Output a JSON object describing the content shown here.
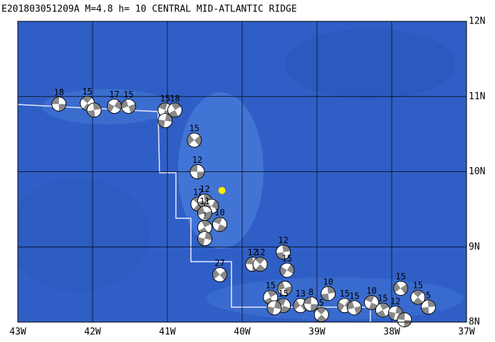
{
  "map": {
    "title": "E201803051209A  M=4.8  h= 10  CENTRAL MID-ATLANTIC RIDGE",
    "lonlim": [
      -43,
      -37
    ],
    "latlim": [
      8,
      12
    ],
    "lon_ticks": [
      {
        "value": -43,
        "label": "43W"
      },
      {
        "value": -42,
        "label": "42W"
      },
      {
        "value": -41,
        "label": "41W"
      },
      {
        "value": -40,
        "label": "40W"
      },
      {
        "value": -39,
        "label": "39W"
      },
      {
        "value": -38,
        "label": "38W"
      },
      {
        "value": -37,
        "label": "37W"
      }
    ],
    "lat_ticks": [
      {
        "value": 8,
        "label": "8N"
      },
      {
        "value": 9,
        "label": "9N"
      },
      {
        "value": 10,
        "label": "10N"
      },
      {
        "value": 11,
        "label": "11N"
      },
      {
        "value": 12,
        "label": "12N"
      }
    ],
    "epicenter": {
      "lon": -40.27,
      "lat": 9.75,
      "color": "#ffee00"
    },
    "events": [
      {
        "lon": -42.45,
        "lat": 10.9,
        "depth": 18
      },
      {
        "lon": -42.07,
        "lat": 10.91,
        "depth": 15
      },
      {
        "lon": -41.98,
        "lat": 10.82,
        "depth": null
      },
      {
        "lon": -41.71,
        "lat": 10.87,
        "depth": 17
      },
      {
        "lon": -41.52,
        "lat": 10.87,
        "depth": 15
      },
      {
        "lon": -41.03,
        "lat": 10.82,
        "depth": 15
      },
      {
        "lon": -40.9,
        "lat": 10.82,
        "depth": 18
      },
      {
        "lon": -41.03,
        "lat": 10.68,
        "depth": null
      },
      {
        "lon": -40.64,
        "lat": 10.42,
        "depth": 15
      },
      {
        "lon": -40.6,
        "lat": 10.0,
        "depth": 12
      },
      {
        "lon": -40.59,
        "lat": 9.57,
        "depth": 12
      },
      {
        "lon": -40.5,
        "lat": 9.61,
        "depth": 12
      },
      {
        "lon": -40.41,
        "lat": 9.54,
        "depth": null
      },
      {
        "lon": -40.5,
        "lat": 9.45,
        "depth": 11
      },
      {
        "lon": -40.3,
        "lat": 9.3,
        "depth": 10
      },
      {
        "lon": -40.5,
        "lat": 9.26,
        "depth": 1
      },
      {
        "lon": -40.5,
        "lat": 9.11,
        "depth": null
      },
      {
        "lon": -40.3,
        "lat": 8.63,
        "depth": 27
      },
      {
        "lon": -39.86,
        "lat": 8.77,
        "depth": 12
      },
      {
        "lon": -39.76,
        "lat": 8.77,
        "depth": 12
      },
      {
        "lon": -39.45,
        "lat": 8.93,
        "depth": 12
      },
      {
        "lon": -39.4,
        "lat": 8.69,
        "depth": 15
      },
      {
        "lon": -39.43,
        "lat": 8.45,
        "depth": null
      },
      {
        "lon": -39.45,
        "lat": 8.22,
        "depth": 15
      },
      {
        "lon": -39.62,
        "lat": 8.33,
        "depth": 15
      },
      {
        "lon": -39.57,
        "lat": 8.19,
        "depth": null
      },
      {
        "lon": -39.22,
        "lat": 8.22,
        "depth": 13
      },
      {
        "lon": -39.08,
        "lat": 8.24,
        "depth": 8
      },
      {
        "lon": -38.94,
        "lat": 8.1,
        "depth": 5
      },
      {
        "lon": -38.85,
        "lat": 8.38,
        "depth": 10
      },
      {
        "lon": -38.63,
        "lat": 8.22,
        "depth": 15
      },
      {
        "lon": -38.5,
        "lat": 8.19,
        "depth": 15
      },
      {
        "lon": -38.27,
        "lat": 8.26,
        "depth": 10
      },
      {
        "lon": -38.12,
        "lat": 8.16,
        "depth": 15
      },
      {
        "lon": -37.95,
        "lat": 8.12,
        "depth": 12
      },
      {
        "lon": -37.88,
        "lat": 8.45,
        "depth": 15
      },
      {
        "lon": -37.83,
        "lat": 8.03,
        "depth": null
      },
      {
        "lon": -37.65,
        "lat": 8.33,
        "depth": 15
      },
      {
        "lon": -37.51,
        "lat": 8.2,
        "depth": 5
      }
    ]
  }
}
